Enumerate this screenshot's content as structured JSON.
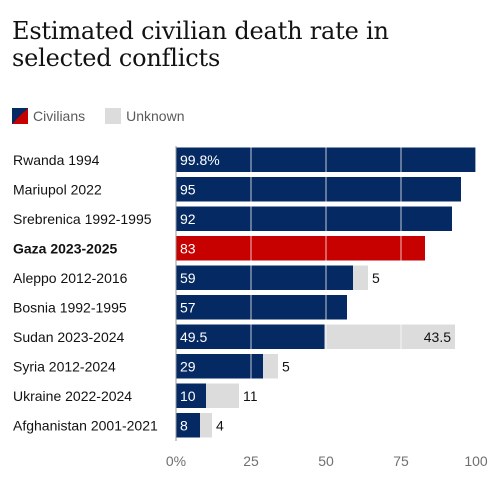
{
  "title": "Estimated civilian death rate in selected conflicts",
  "colors": {
    "civilians": "#052962",
    "highlight": "#c70000",
    "unknown": "#dcdcdc",
    "label_on_bar": "#ffffff",
    "label_outside": "#121212",
    "tick": "#707070",
    "axis": "#999999"
  },
  "legend": [
    {
      "label": "Civilians",
      "swatch": "split"
    },
    {
      "label": "Unknown",
      "swatch": "unknown"
    }
  ],
  "chart_data": {
    "type": "bar",
    "orientation": "horizontal",
    "stacked": true,
    "xlim": [
      0,
      100
    ],
    "ticks": [
      0,
      25,
      50,
      75,
      100
    ],
    "tick_labels": [
      "0%",
      "25",
      "50",
      "75",
      "100"
    ],
    "grid": true,
    "legend_position": "top-left",
    "categories": [
      "Rwanda 1994",
      "Mariupol 2022",
      "Srebrenica 1992-1995",
      "Gaza 2023-2025",
      "Aleppo 2012-2016",
      "Bosnia 1992-1995",
      "Sudan 2023-2024",
      "Syria 2012-2024",
      "Ukraine 2022-2024",
      "Afghanistan 2001-2021"
    ],
    "highlight": "Gaza 2023-2025",
    "series": [
      {
        "name": "Civilians",
        "values": [
          99.8,
          95,
          92,
          83,
          59,
          57,
          49.5,
          29,
          10,
          8
        ],
        "labels": [
          "99.8%",
          "95",
          "92",
          "83",
          "59",
          "57",
          "49.5",
          "29",
          "10",
          "8"
        ]
      },
      {
        "name": "Unknown",
        "values": [
          0,
          0,
          0,
          0,
          5,
          0,
          43.5,
          5,
          11,
          4
        ],
        "labels": [
          "",
          "",
          "",
          "",
          "5",
          "",
          "43.5",
          "5",
          "11",
          "4"
        ]
      }
    ]
  }
}
